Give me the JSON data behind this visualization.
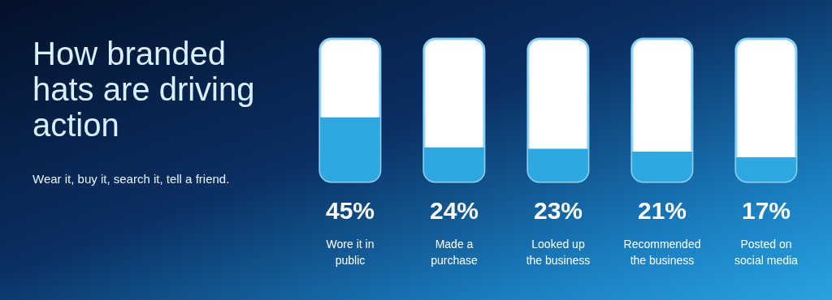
{
  "chart_data": {
    "type": "bar",
    "title": "How branded hats are driving action",
    "subtitle": "Wear it, buy it, search it, tell a friend.",
    "categories": [
      "Wore it in public",
      "Made a purchase",
      "Looked up the business",
      "Recommended the business",
      "Posted on social media"
    ],
    "values": [
      45,
      24,
      23,
      21,
      17
    ],
    "color": "#2fa8e2",
    "value_labels": [
      "45%",
      "24%",
      "23%",
      "21%",
      "17%"
    ],
    "ylim": [
      0,
      100
    ]
  }
}
